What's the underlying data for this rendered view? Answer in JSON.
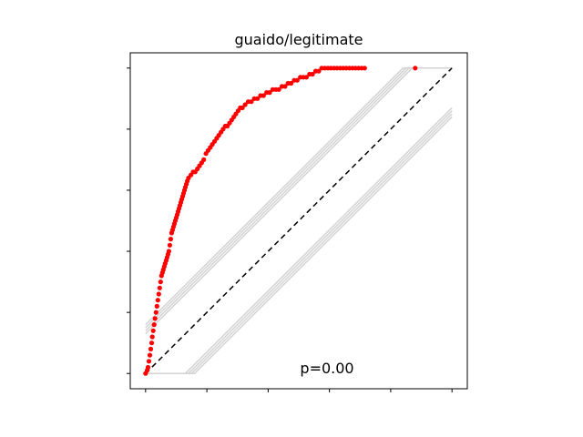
{
  "chart_data": {
    "type": "scatter",
    "title": "guaido/legitimate",
    "xlabel": "",
    "ylabel": "",
    "xlim": [
      -0.05,
      1.05
    ],
    "ylim": [
      -0.05,
      1.05
    ],
    "annotation": "p=0.00",
    "colors": {
      "points": "#ff0000",
      "reference_line": "#000000",
      "envelope": "#d3d3d3"
    },
    "reference_line": {
      "x": [
        0,
        1
      ],
      "y": [
        0,
        1
      ],
      "style": "dashed"
    },
    "envelope_offsets": [
      0.16,
      0.15,
      0.14,
      0.13,
      -0.13,
      -0.14,
      -0.15,
      -0.16
    ],
    "series": [
      {
        "x": [
          0.0,
          0.005,
          0.008,
          0.011,
          0.014,
          0.017,
          0.02,
          0.022,
          0.025,
          0.028,
          0.031,
          0.034,
          0.037,
          0.04,
          0.043,
          0.046,
          0.049,
          0.052,
          0.055,
          0.058,
          0.061,
          0.064,
          0.067,
          0.07,
          0.073,
          0.076,
          0.079,
          0.082,
          0.085,
          0.088,
          0.091,
          0.094,
          0.097,
          0.1,
          0.103,
          0.106,
          0.109,
          0.112,
          0.115,
          0.118,
          0.121,
          0.124,
          0.127,
          0.13,
          0.133,
          0.136,
          0.14,
          0.148,
          0.155,
          0.162,
          0.169,
          0.176,
          0.183,
          0.19,
          0.197,
          0.204,
          0.211,
          0.218,
          0.225,
          0.232,
          0.239,
          0.246,
          0.253,
          0.26,
          0.267,
          0.274,
          0.281,
          0.288,
          0.295,
          0.302,
          0.309,
          0.316,
          0.325,
          0.335,
          0.345,
          0.355,
          0.365,
          0.375,
          0.385,
          0.395,
          0.405,
          0.415,
          0.425,
          0.435,
          0.445,
          0.455,
          0.465,
          0.475,
          0.485,
          0.495,
          0.505,
          0.515,
          0.525,
          0.535,
          0.545,
          0.555,
          0.565,
          0.575,
          0.585,
          0.595,
          0.605,
          0.615,
          0.625,
          0.635,
          0.645,
          0.655,
          0.665,
          0.675,
          0.685,
          0.695,
          0.705,
          0.715,
          0.88
        ],
        "y": [
          0.0,
          0.01,
          0.02,
          0.04,
          0.06,
          0.08,
          0.1,
          0.12,
          0.14,
          0.16,
          0.18,
          0.2,
          0.22,
          0.24,
          0.26,
          0.28,
          0.3,
          0.32,
          0.33,
          0.34,
          0.35,
          0.36,
          0.37,
          0.38,
          0.39,
          0.4,
          0.42,
          0.44,
          0.46,
          0.47,
          0.48,
          0.49,
          0.5,
          0.51,
          0.52,
          0.53,
          0.54,
          0.55,
          0.56,
          0.57,
          0.58,
          0.59,
          0.6,
          0.61,
          0.62,
          0.63,
          0.64,
          0.65,
          0.66,
          0.66,
          0.67,
          0.68,
          0.69,
          0.7,
          0.72,
          0.73,
          0.74,
          0.75,
          0.76,
          0.77,
          0.78,
          0.79,
          0.8,
          0.81,
          0.81,
          0.82,
          0.83,
          0.84,
          0.85,
          0.86,
          0.87,
          0.87,
          0.88,
          0.89,
          0.89,
          0.9,
          0.9,
          0.91,
          0.91,
          0.92,
          0.92,
          0.93,
          0.93,
          0.93,
          0.94,
          0.94,
          0.95,
          0.95,
          0.96,
          0.96,
          0.97,
          0.97,
          0.97,
          0.98,
          0.98,
          0.99,
          0.99,
          1.0,
          1.0,
          1.0,
          1.0,
          1.0,
          1.0,
          1.0,
          1.0,
          1.0,
          1.0,
          1.0,
          1.0,
          1.0,
          1.0,
          1.0,
          1.0
        ]
      }
    ]
  }
}
